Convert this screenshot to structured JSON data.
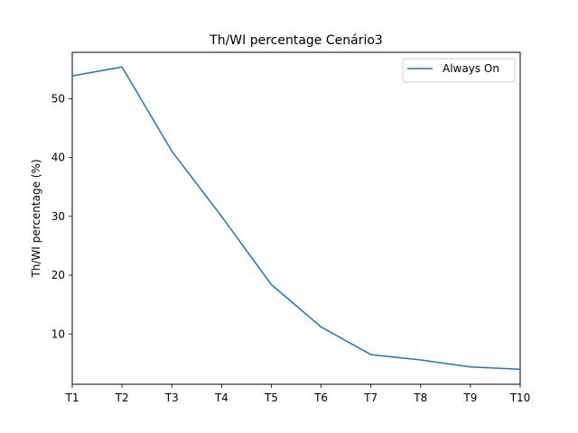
{
  "chart_data": {
    "type": "line",
    "title": "Th/WI percentage Cenário3",
    "xlabel": "",
    "ylabel": "Th/WI percentage (%)",
    "categories": [
      "T1",
      "T2",
      "T3",
      "T4",
      "T5",
      "T6",
      "T7",
      "T8",
      "T9",
      "T10"
    ],
    "series": [
      {
        "name": "Always On",
        "color": "#1f77b4",
        "values": [
          53.9,
          55.4,
          41.1,
          30.0,
          18.4,
          11.2,
          6.5,
          5.6,
          4.4,
          4.0
        ]
      }
    ],
    "ylim": [
      1.45,
      57.9
    ],
    "yticks": [
      10,
      20,
      30,
      40,
      50
    ],
    "grid": false,
    "legend": "top-right"
  }
}
